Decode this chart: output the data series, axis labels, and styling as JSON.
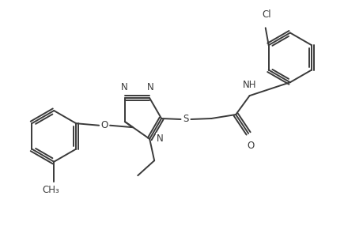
{
  "bg_color": "#ffffff",
  "line_color": "#3a3a3a",
  "line_width": 1.4,
  "font_size": 8.5,
  "figsize": [
    4.6,
    3.0
  ],
  "dpi": 100,
  "xlim": [
    0,
    9.2
  ],
  "ylim": [
    0,
    6.0
  ]
}
